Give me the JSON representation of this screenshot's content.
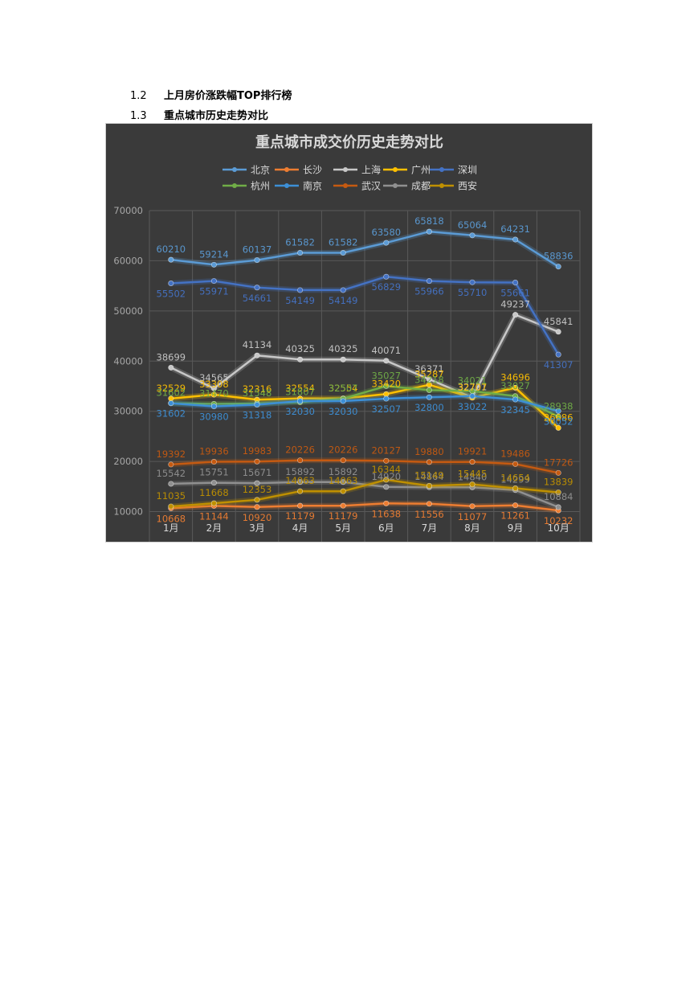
{
  "headings": [
    {
      "number": "1.2",
      "text": "上月房价涨跌幅TOP排行榜"
    },
    {
      "number": "1.3",
      "text": "重点城市历史走势对比"
    }
  ],
  "chart_data": {
    "type": "line",
    "title": "重点城市成交价历史走势对比",
    "xlabel": "",
    "ylabel": "",
    "categories": [
      "1月",
      "2月",
      "3月",
      "4月",
      "5月",
      "6月",
      "7月",
      "8月",
      "9月",
      "10月"
    ],
    "ylim": [
      10000,
      70000
    ],
    "yticks": [
      10000,
      20000,
      30000,
      40000,
      50000,
      60000,
      70000
    ],
    "grid": true,
    "legend_position": "top",
    "series": [
      {
        "name": "北京",
        "color": "#5b9bd5",
        "values": [
          60210,
          59214,
          60137,
          61582,
          61582,
          63580,
          65818,
          65064,
          64231,
          58836
        ]
      },
      {
        "name": "长沙",
        "color": "#ed7d31",
        "values": [
          10668,
          11144,
          10920,
          11179,
          11179,
          11638,
          11556,
          11077,
          11261,
          10232
        ]
      },
      {
        "name": "上海",
        "color": "#c8c8c8",
        "values": [
          38699,
          34565,
          41134,
          40325,
          40325,
          40071,
          36371,
          32731,
          49237,
          45841
        ]
      },
      {
        "name": "广州",
        "color": "#ffc000",
        "values": [
          32529,
          33308,
          32316,
          32554,
          32554,
          33420,
          35287,
          32707,
          34696,
          26686
        ]
      },
      {
        "name": "深圳",
        "color": "#4472c4",
        "values": [
          55502,
          55971,
          54661,
          54149,
          54149,
          56829,
          55966,
          55710,
          55661,
          41307
        ]
      },
      {
        "name": "杭州",
        "color": "#70ad47",
        "values": [
          31602,
          31470,
          31548,
          31807,
          32507,
          35027,
          34218,
          34021,
          33027,
          28938
        ]
      },
      {
        "name": "南京",
        "color": "#3d8fd6",
        "values": [
          31602,
          30980,
          31318,
          32030,
          32030,
          32507,
          32800,
          33022,
          32345,
          30052
        ]
      },
      {
        "name": "武汉",
        "color": "#c55a11",
        "values": [
          19392,
          19936,
          19983,
          20226,
          20226,
          20127,
          19880,
          19921,
          19486,
          17726
        ]
      },
      {
        "name": "成都",
        "color": "#909090",
        "values": [
          15542,
          15751,
          15671,
          15892,
          15892,
          14920,
          14864,
          14840,
          14299,
          10884
        ]
      },
      {
        "name": "西安",
        "color": "#bf9000",
        "values": [
          11035,
          11668,
          12353,
          14063,
          14063,
          16344,
          15149,
          15445,
          14654,
          13839
        ]
      }
    ]
  }
}
